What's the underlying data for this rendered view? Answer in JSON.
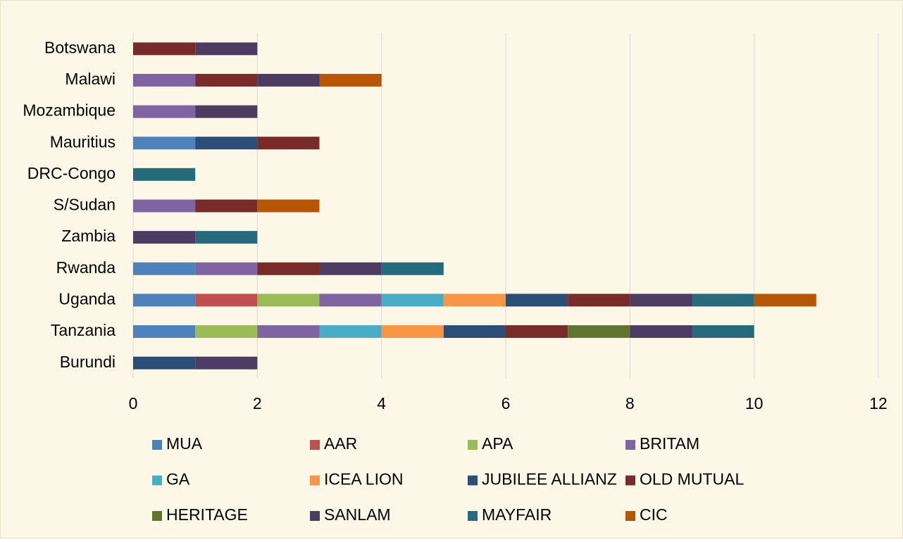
{
  "chart_data": {
    "type": "stacked-bar-horizontal",
    "categories": [
      "Botswana",
      "Malawi",
      "Mozambique",
      "Mauritius",
      "DRC-Congo",
      "S/Sudan",
      "Zambia",
      "Rwanda",
      "Uganda",
      "Tanzania",
      "Burundi"
    ],
    "series": [
      {
        "name": "MUA",
        "color": "#4f81bd",
        "values": [
          0,
          0,
          0,
          1,
          0,
          0,
          0,
          1,
          1,
          1,
          0
        ]
      },
      {
        "name": "AAR",
        "color": "#c0504d",
        "values": [
          0,
          0,
          0,
          0,
          0,
          0,
          0,
          0,
          1,
          0,
          0
        ]
      },
      {
        "name": "APA",
        "color": "#9bbb59",
        "values": [
          0,
          0,
          0,
          0,
          0,
          0,
          0,
          0,
          1,
          1,
          0
        ]
      },
      {
        "name": "BRITAM",
        "color": "#8064a2",
        "values": [
          0,
          1,
          1,
          0,
          0,
          1,
          0,
          1,
          1,
          1,
          0
        ]
      },
      {
        "name": "GA",
        "color": "#4bacc6",
        "values": [
          0,
          0,
          0,
          0,
          0,
          0,
          0,
          0,
          1,
          1,
          0
        ]
      },
      {
        "name": "ICEA LION",
        "color": "#f79646",
        "values": [
          0,
          0,
          0,
          0,
          0,
          0,
          0,
          0,
          1,
          1,
          0
        ]
      },
      {
        "name": "JUBILEE ALLIANZ",
        "color": "#2c4d75",
        "values": [
          0,
          0,
          0,
          1,
          0,
          0,
          0,
          0,
          1,
          1,
          1
        ]
      },
      {
        "name": "OLD MUTUAL",
        "color": "#772c2a",
        "values": [
          1,
          1,
          0,
          1,
          0,
          1,
          0,
          1,
          1,
          1,
          0
        ]
      },
      {
        "name": "HERITAGE",
        "color": "#5f7530",
        "values": [
          0,
          0,
          0,
          0,
          0,
          0,
          0,
          0,
          0,
          1,
          0
        ]
      },
      {
        "name": "SANLAM",
        "color": "#4d3b62",
        "values": [
          1,
          1,
          1,
          0,
          0,
          0,
          1,
          1,
          1,
          1,
          1
        ]
      },
      {
        "name": "MAYFAIR",
        "color": "#276a7c",
        "values": [
          0,
          0,
          0,
          0,
          1,
          0,
          1,
          1,
          1,
          1,
          0
        ]
      },
      {
        "name": "CIC",
        "color": "#b65708",
        "values": [
          0,
          1,
          0,
          0,
          0,
          1,
          0,
          0,
          1,
          0,
          0
        ]
      }
    ],
    "xlim": [
      0,
      12
    ],
    "xticks": [
      0,
      2,
      4,
      6,
      8,
      10,
      12
    ],
    "grid": true
  }
}
